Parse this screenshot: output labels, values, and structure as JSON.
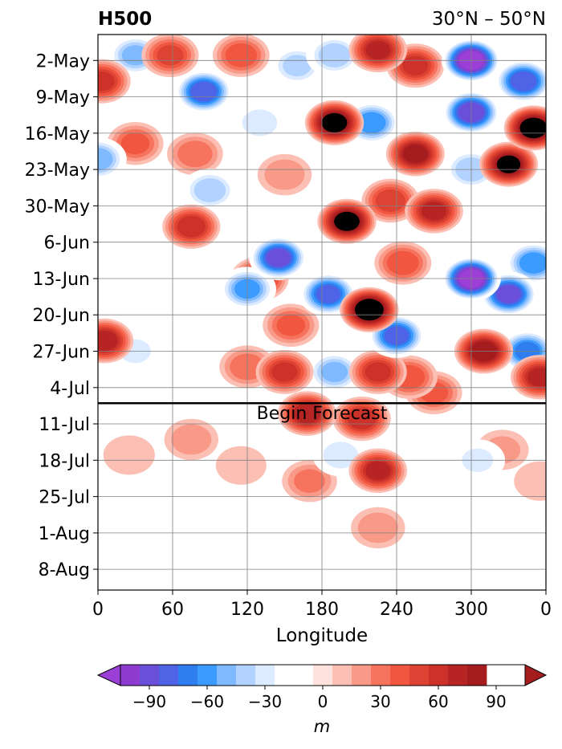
{
  "chart_data": {
    "type": "heatmap",
    "title": "H500",
    "subtitle": "30°N – 50°N",
    "xlabel": "Longitude",
    "ylabel": "",
    "x_ticks": [
      "0",
      "60",
      "120",
      "180",
      "240",
      "300",
      "0"
    ],
    "y_ticks": [
      "2-May",
      "9-May",
      "16-May",
      "23-May",
      "30-May",
      "6-Jun",
      "13-Jun",
      "20-Jun",
      "27-Jun",
      "4-Jul",
      "11-Jul",
      "18-Jul",
      "25-Jul",
      "1-Aug",
      "8-Aug"
    ],
    "xlim": [
      0,
      360
    ],
    "ylim": [
      "2026-04-27",
      "2026-08-12"
    ],
    "forecast_start": "2026-07-07",
    "annotation": "Begin Forecast",
    "grid": true,
    "colorbar": {
      "label": "m",
      "ticks": [
        "−90",
        "−60",
        "−30",
        "0",
        "30",
        "60",
        "90"
      ],
      "levels": [
        -105,
        -95,
        -85,
        -75,
        -65,
        -55,
        -45,
        -35,
        -25,
        -15,
        -5,
        5,
        15,
        25,
        35,
        45,
        55,
        65,
        75,
        85,
        95,
        105
      ],
      "colors": [
        "#8e3cd0",
        "#6a4fd8",
        "#4f63e6",
        "#2f7ef0",
        "#3c9bff",
        "#7fb9ff",
        "#b2d3ff",
        "#dcebff",
        "#ffffff",
        "#ffffff",
        "#fde2de",
        "#fcbfb4",
        "#f99a88",
        "#f6735e",
        "#f05640",
        "#dd4332",
        "#cc3229",
        "#b72424",
        "#a51c1f"
      ],
      "extend": "both",
      "under_color": "#9b3fd6",
      "over_color": "#a51c1f"
    },
    "anomaly_centers": [
      {
        "lon": 3,
        "date": "2026-05-06",
        "value": 55
      },
      {
        "lon": 30,
        "date": "2026-05-01",
        "value": -45
      },
      {
        "lon": 58,
        "date": "2026-05-01",
        "value": 45
      },
      {
        "lon": 85,
        "date": "2026-05-08",
        "value": -80
      },
      {
        "lon": 115,
        "date": "2026-05-01",
        "value": 40
      },
      {
        "lon": 160,
        "date": "2026-05-03",
        "value": -35
      },
      {
        "lon": 190,
        "date": "2026-05-01",
        "value": -40
      },
      {
        "lon": 225,
        "date": "2026-04-30",
        "value": 65
      },
      {
        "lon": 255,
        "date": "2026-05-03",
        "value": 55
      },
      {
        "lon": 300,
        "date": "2026-05-02",
        "value": -110
      },
      {
        "lon": 342,
        "date": "2026-05-06",
        "value": -80
      },
      {
        "lon": 300,
        "date": "2026-05-12",
        "value": -90
      },
      {
        "lon": 0,
        "date": "2026-05-21",
        "value": -50
      },
      {
        "lon": 30,
        "date": "2026-05-18",
        "value": 35
      },
      {
        "lon": 78,
        "date": "2026-05-20",
        "value": 30
      },
      {
        "lon": 90,
        "date": "2026-05-27",
        "value": -40
      },
      {
        "lon": 130,
        "date": "2026-05-14",
        "value": -30
      },
      {
        "lon": 150,
        "date": "2026-05-24",
        "value": 20
      },
      {
        "lon": 190,
        "date": "2026-05-14",
        "value": 90
      },
      {
        "lon": 220,
        "date": "2026-05-14",
        "value": -60
      },
      {
        "lon": 255,
        "date": "2026-05-20",
        "value": 75
      },
      {
        "lon": 270,
        "date": "2026-05-31",
        "value": 65
      },
      {
        "lon": 235,
        "date": "2026-05-29",
        "value": 50
      },
      {
        "lon": 200,
        "date": "2026-06-02",
        "value": 90
      },
      {
        "lon": 300,
        "date": "2026-05-23",
        "value": -40
      },
      {
        "lon": 330,
        "date": "2026-05-22",
        "value": 85
      },
      {
        "lon": 350,
        "date": "2026-05-15",
        "value": 95
      },
      {
        "lon": 75,
        "date": "2026-06-03",
        "value": 60
      },
      {
        "lon": 130,
        "date": "2026-06-13",
        "value": 55
      },
      {
        "lon": 145,
        "date": "2026-06-09",
        "value": -85
      },
      {
        "lon": 120,
        "date": "2026-06-15",
        "value": -55
      },
      {
        "lon": 245,
        "date": "2026-06-10",
        "value": 40
      },
      {
        "lon": 300,
        "date": "2026-06-13",
        "value": -110
      },
      {
        "lon": 330,
        "date": "2026-06-16",
        "value": -85
      },
      {
        "lon": 350,
        "date": "2026-06-10",
        "value": -60
      },
      {
        "lon": 155,
        "date": "2026-06-22",
        "value": 35
      },
      {
        "lon": 185,
        "date": "2026-06-16",
        "value": -75
      },
      {
        "lon": 218,
        "date": "2026-06-19",
        "value": 100
      },
      {
        "lon": 240,
        "date": "2026-06-24",
        "value": -75
      },
      {
        "lon": 5,
        "date": "2026-06-25",
        "value": 70
      },
      {
        "lon": 30,
        "date": "2026-06-27",
        "value": -25
      },
      {
        "lon": 60,
        "date": "2026-06-21",
        "value": -15
      },
      {
        "lon": 120,
        "date": "2026-06-30",
        "value": 30
      },
      {
        "lon": 150,
        "date": "2026-07-01",
        "value": 55
      },
      {
        "lon": 190,
        "date": "2026-07-01",
        "value": -45
      },
      {
        "lon": 225,
        "date": "2026-07-01",
        "value": 55
      },
      {
        "lon": 250,
        "date": "2026-07-02",
        "value": 40
      },
      {
        "lon": 310,
        "date": "2026-06-27",
        "value": 80
      },
      {
        "lon": 345,
        "date": "2026-06-27",
        "value": -65
      },
      {
        "lon": 355,
        "date": "2026-07-02",
        "value": 65
      },
      {
        "lon": 168,
        "date": "2026-07-09",
        "value": 70
      },
      {
        "lon": 212,
        "date": "2026-07-10",
        "value": 60
      },
      {
        "lon": 270,
        "date": "2026-07-05",
        "value": 35
      },
      {
        "lon": 225,
        "date": "2026-07-20",
        "value": 65
      },
      {
        "lon": 225,
        "date": "2026-07-31",
        "value": 20
      },
      {
        "lon": 170,
        "date": "2026-07-22",
        "value": 25
      },
      {
        "lon": 195,
        "date": "2026-07-17",
        "value": -30
      },
      {
        "lon": 75,
        "date": "2026-07-14",
        "value": 20
      },
      {
        "lon": 25,
        "date": "2026-07-17",
        "value": 12
      },
      {
        "lon": 115,
        "date": "2026-07-19",
        "value": 10
      },
      {
        "lon": 260,
        "date": "2026-07-21",
        "value": -20
      },
      {
        "lon": 305,
        "date": "2026-07-18",
        "value": -25
      },
      {
        "lon": 325,
        "date": "2026-07-16",
        "value": 15
      },
      {
        "lon": 355,
        "date": "2026-07-22",
        "value": 12
      }
    ]
  }
}
